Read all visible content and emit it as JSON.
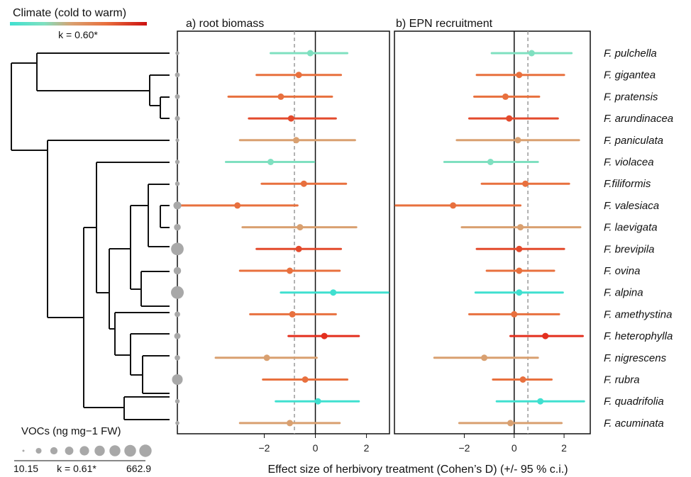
{
  "legend": {
    "climate_title": "Climate (cold to warm)",
    "climate_k": "k = 0.60*",
    "climate_colors": [
      "#40e0d0",
      "#7fe0c0",
      "#d9a070",
      "#e8703e",
      "#e34a2c",
      "#cc1010"
    ],
    "voc_title": "VOCs (ng mg−1 FW)",
    "voc_min": "10.15",
    "voc_max": "662.9",
    "voc_k": "k = 0.61*"
  },
  "x_axis_label": "Effect size of herbivory treatment (Cohen’s D) (+/- 95 % c.i.)",
  "chart_data": [
    {
      "type": "forest",
      "title": "a) root biomass",
      "xlim": [
        -5.4,
        2.9
      ],
      "xticks": [
        -2,
        0,
        2
      ],
      "reference_line": 0,
      "mean_line": -0.82,
      "categories": [
        "F. pulchella",
        "F. gigantea",
        "F. pratensis",
        "F. arundinacea",
        "F. paniculata",
        "F. violacea",
        "F.filiformis",
        "F. valesiaca",
        "F. laevigata",
        "F. brevipila",
        "F. ovina",
        "F. alpina",
        "F. amethystina",
        "F. heterophylla",
        "F. nigrescens",
        "F. rubra",
        "F. quadrifolia",
        "F. acuminata"
      ],
      "estimate": [
        -0.2,
        -0.65,
        -1.35,
        -0.95,
        -0.75,
        -1.75,
        -0.45,
        -3.05,
        -0.6,
        -0.65,
        -1.0,
        0.7,
        -0.9,
        0.35,
        -1.9,
        -0.4,
        0.1,
        -1.0
      ],
      "ci_low": [
        -1.75,
        -2.3,
        -3.4,
        -2.6,
        -2.95,
        -3.5,
        -2.1,
        -5.35,
        -2.85,
        -2.3,
        -2.95,
        -1.35,
        -2.55,
        -1.05,
        -3.9,
        -2.05,
        -1.55,
        -2.95
      ],
      "ci_high": [
        1.25,
        1.0,
        0.65,
        0.8,
        1.55,
        -0.05,
        1.2,
        -0.7,
        1.6,
        1.0,
        0.95,
        2.85,
        0.8,
        1.7,
        0.05,
        1.25,
        1.7,
        0.95
      ],
      "colors": [
        "#7fe0c0",
        "#e8703e",
        "#e8703e",
        "#e34a2c",
        "#d9a070",
        "#7fe0c0",
        "#e8703e",
        "#e8703e",
        "#d9a070",
        "#e34a2c",
        "#e8703e",
        "#40e0d0",
        "#e8703e",
        "#e32f1e",
        "#d9a070",
        "#e8703e",
        "#40e0d0",
        "#d9a070"
      ]
    },
    {
      "type": "forest",
      "title": "b) EPN recruitment",
      "xlim": [
        -4.8,
        3.05
      ],
      "xticks": [
        -2,
        0,
        2
      ],
      "reference_line": 0,
      "mean_line": 0.55,
      "categories": [
        "F. pulchella",
        "F. gigantea",
        "F. pratensis",
        "F. arundinacea",
        "F. paniculata",
        "F. violacea",
        "F.filiformis",
        "F. valesiaca",
        "F. laevigata",
        "F. brevipila",
        "F. ovina",
        "F. alpina",
        "F. amethystina",
        "F. heterophylla",
        "F. nigrescens",
        "F. rubra",
        "F. quadrifolia",
        "F. acuminata"
      ],
      "estimate": [
        0.7,
        0.2,
        -0.35,
        -0.2,
        0.15,
        -0.95,
        0.45,
        -2.45,
        0.25,
        0.2,
        0.2,
        0.2,
        0.0,
        1.25,
        -1.2,
        0.35,
        1.05,
        -0.15
      ],
      "ci_low": [
        -0.9,
        -1.5,
        -1.6,
        -1.8,
        -2.3,
        -2.8,
        -1.3,
        -4.75,
        -2.1,
        -1.5,
        -1.1,
        -1.55,
        -1.8,
        -0.15,
        -3.2,
        -0.85,
        -0.7,
        -2.2
      ],
      "ci_high": [
        2.3,
        2.0,
        1.0,
        1.75,
        2.6,
        0.95,
        2.2,
        0.25,
        2.65,
        2.0,
        1.6,
        1.95,
        1.8,
        2.75,
        0.95,
        1.5,
        2.8,
        1.9
      ],
      "colors": [
        "#7fe0c0",
        "#e8703e",
        "#e8703e",
        "#e34a2c",
        "#d9a070",
        "#7fe0c0",
        "#e8703e",
        "#e8703e",
        "#d9a070",
        "#e34a2c",
        "#e8703e",
        "#40e0d0",
        "#e8703e",
        "#e32f1e",
        "#d9a070",
        "#e8703e",
        "#40e0d0",
        "#d9a070"
      ]
    }
  ],
  "voc_values": [
    18,
    38,
    40,
    42,
    15,
    28,
    30,
    180,
    110,
    640,
    150,
    662.9,
    60,
    90,
    55,
    420,
    30,
    20
  ]
}
